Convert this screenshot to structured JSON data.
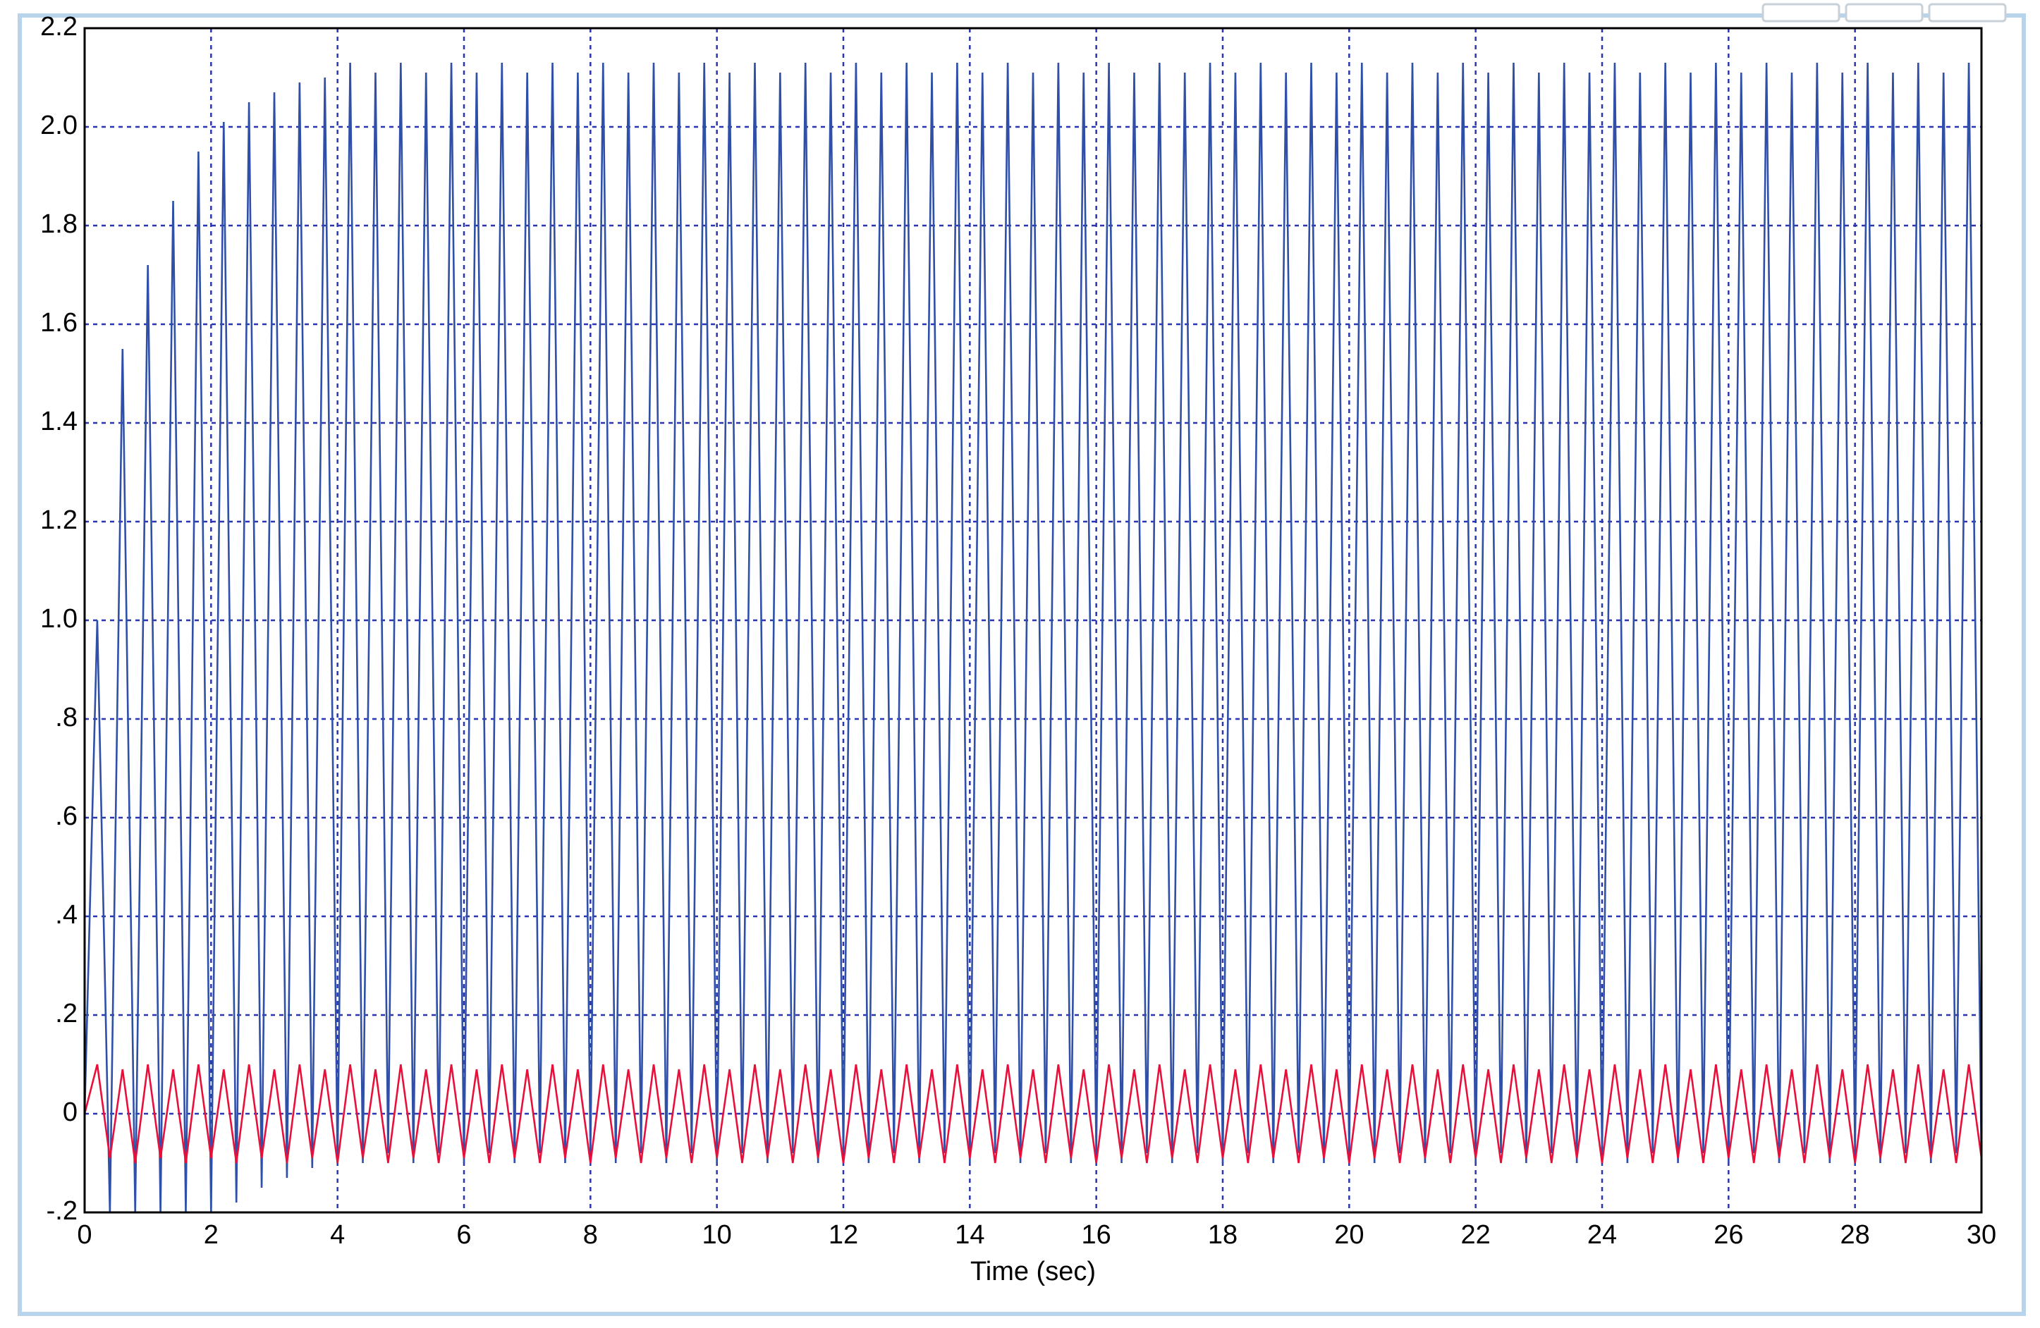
{
  "chart_data": {
    "type": "line",
    "xlabel": "Time (sec)",
    "xlim": [
      0,
      30
    ],
    "xticks": [
      0,
      2,
      4,
      6,
      8,
      10,
      12,
      14,
      16,
      18,
      20,
      22,
      24,
      26,
      28,
      30
    ],
    "ylim": [
      -0.2,
      2.2
    ],
    "yticks": [
      {
        "value": -0.2,
        "label": "-.2"
      },
      0,
      {
        "value": 0.2,
        "label": ".2"
      },
      {
        "value": 0.4,
        "label": ".4"
      },
      {
        "value": 0.6,
        "label": ".6"
      },
      {
        "value": 0.8,
        "label": ".8"
      },
      {
        "value": 1.0,
        "label": "1.0"
      },
      1.2,
      1.4,
      1.6,
      1.8,
      {
        "value": 2.0,
        "label": "2.0"
      },
      2.2
    ],
    "grid": true,
    "x": [
      0,
      0.2,
      0.4,
      0.6,
      0.8,
      1,
      1.2,
      1.4,
      1.6,
      1.8,
      2,
      2.2,
      2.4,
      2.6,
      2.8,
      3,
      3.2,
      3.4,
      3.6,
      3.8,
      4,
      4.2,
      4.4,
      4.6,
      4.8,
      5,
      5.2,
      5.4,
      5.6,
      5.8,
      6,
      6.2,
      6.4,
      6.6,
      6.8,
      7,
      7.2,
      7.4,
      7.6,
      7.8,
      8,
      8.2,
      8.4,
      8.6,
      8.8,
      9,
      9.2,
      9.4,
      9.6,
      9.8,
      10,
      10.2,
      10.4,
      10.6,
      10.8,
      11,
      11.2,
      11.4,
      11.6,
      11.8,
      12,
      12.2,
      12.4,
      12.6,
      12.8,
      13,
      13.2,
      13.4,
      13.6,
      13.8,
      14,
      14.2,
      14.4,
      14.6,
      14.8,
      15,
      15.2,
      15.4,
      15.6,
      15.8,
      16,
      16.2,
      16.4,
      16.6,
      16.8,
      17,
      17.2,
      17.4,
      17.6,
      17.8,
      18,
      18.2,
      18.4,
      18.6,
      18.8,
      19,
      19.2,
      19.4,
      19.6,
      19.8,
      20,
      20.2,
      20.4,
      20.6,
      20.8,
      21,
      21.2,
      21.4,
      21.6,
      21.8,
      22,
      22.2,
      22.4,
      22.6,
      22.8,
      23,
      23.2,
      23.4,
      23.6,
      23.8,
      24,
      24.2,
      24.4,
      24.6,
      24.8,
      25,
      25.2,
      25.4,
      25.6,
      25.8,
      26,
      26.2,
      26.4,
      26.6,
      26.8,
      27,
      27.2,
      27.4,
      27.6,
      27.8,
      28,
      28.2,
      28.4,
      28.6,
      28.8,
      29,
      29.2,
      29.4,
      29.6,
      29.8,
      30
    ],
    "series": [
      {
        "color": "#3050a8",
        "values": [
          0,
          1,
          -0.2,
          1.55,
          -0.2,
          1.72,
          -0.2,
          1.85,
          -0.2,
          1.95,
          -0.2,
          2.01,
          -0.18,
          2.05,
          -0.15,
          2.07,
          -0.13,
          2.09,
          -0.11,
          2.1,
          -0.1,
          2.13,
          -0.1,
          2.11,
          -0.08,
          2.13,
          -0.1,
          2.11,
          -0.08,
          2.13,
          -0.1,
          2.11,
          -0.08,
          2.13,
          -0.1,
          2.11,
          -0.08,
          2.13,
          -0.1,
          2.11,
          -0.08,
          2.13,
          -0.1,
          2.11,
          -0.08,
          2.13,
          -0.1,
          2.11,
          -0.08,
          2.13,
          -0.1,
          2.11,
          -0.08,
          2.13,
          -0.1,
          2.11,
          -0.08,
          2.13,
          -0.1,
          2.11,
          -0.08,
          2.13,
          -0.1,
          2.11,
          -0.08,
          2.13,
          -0.1,
          2.11,
          -0.08,
          2.13,
          -0.1,
          2.11,
          -0.08,
          2.13,
          -0.1,
          2.11,
          -0.08,
          2.13,
          -0.1,
          2.11,
          -0.08,
          2.13,
          -0.1,
          2.11,
          -0.08,
          2.13,
          -0.1,
          2.11,
          -0.08,
          2.13,
          -0.1,
          2.11,
          -0.08,
          2.13,
          -0.1,
          2.11,
          -0.08,
          2.13,
          -0.1,
          2.11,
          -0.08,
          2.13,
          -0.1,
          2.11,
          -0.08,
          2.13,
          -0.1,
          2.11,
          -0.08,
          2.13,
          -0.1,
          2.11,
          -0.08,
          2.13,
          -0.1,
          2.11,
          -0.08,
          2.13,
          -0.1,
          2.11,
          -0.08,
          2.13,
          -0.1,
          2.11,
          -0.08,
          2.13,
          -0.1,
          2.11,
          -0.08,
          2.13,
          -0.1,
          2.11,
          -0.08,
          2.13,
          -0.1,
          2.11,
          -0.08,
          2.13,
          -0.1,
          2.11,
          -0.08,
          2.13,
          -0.1,
          2.11,
          -0.08,
          2.13,
          -0.1,
          2.11,
          -0.08,
          2.13,
          -0.1
        ]
      },
      {
        "color": "#e8103a",
        "values": [
          0,
          0.1,
          -0.09,
          0.09,
          -0.1,
          0.1,
          -0.09,
          0.09,
          -0.1,
          0.1,
          -0.09,
          0.09,
          -0.1,
          0.1,
          -0.09,
          0.09,
          -0.1,
          0.1,
          -0.09,
          0.09,
          -0.1,
          0.1,
          -0.09,
          0.09,
          -0.1,
          0.1,
          -0.09,
          0.09,
          -0.1,
          0.1,
          -0.09,
          0.09,
          -0.1,
          0.1,
          -0.09,
          0.09,
          -0.1,
          0.1,
          -0.09,
          0.09,
          -0.1,
          0.1,
          -0.09,
          0.09,
          -0.1,
          0.1,
          -0.09,
          0.09,
          -0.1,
          0.1,
          -0.09,
          0.09,
          -0.1,
          0.1,
          -0.09,
          0.09,
          -0.1,
          0.1,
          -0.09,
          0.09,
          -0.1,
          0.1,
          -0.09,
          0.09,
          -0.1,
          0.1,
          -0.09,
          0.09,
          -0.1,
          0.1,
          -0.09,
          0.09,
          -0.1,
          0.1,
          -0.09,
          0.09,
          -0.1,
          0.1,
          -0.09,
          0.09,
          -0.1,
          0.1,
          -0.09,
          0.09,
          -0.1,
          0.1,
          -0.09,
          0.09,
          -0.1,
          0.1,
          -0.09,
          0.09,
          -0.1,
          0.1,
          -0.09,
          0.09,
          -0.1,
          0.1,
          -0.09,
          0.09,
          -0.1,
          0.1,
          -0.09,
          0.09,
          -0.1,
          0.1,
          -0.09,
          0.09,
          -0.1,
          0.1,
          -0.09,
          0.09,
          -0.1,
          0.1,
          -0.09,
          0.09,
          -0.1,
          0.1,
          -0.09,
          0.09,
          -0.1,
          0.1,
          -0.09,
          0.09,
          -0.1,
          0.1,
          -0.09,
          0.09,
          -0.1,
          0.1,
          -0.09,
          0.09,
          -0.1,
          0.1,
          -0.09,
          0.09,
          -0.1,
          0.1,
          -0.09,
          0.09,
          -0.1,
          0.1,
          -0.09,
          0.09,
          -0.1,
          0.1,
          -0.09,
          0.09,
          -0.1,
          0.1,
          -0.09
        ]
      }
    ]
  }
}
